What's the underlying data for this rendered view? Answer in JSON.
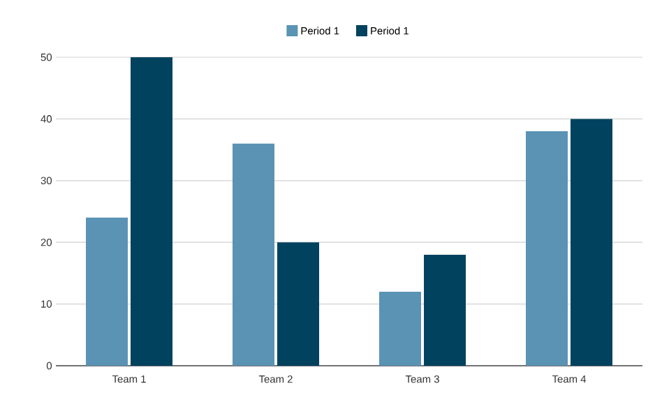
{
  "chart_data": {
    "type": "bar",
    "categories": [
      "Team 1",
      "Team 2",
      "Team 3",
      "Team 4"
    ],
    "series": [
      {
        "name": "Period 1",
        "color": "#5a93b4",
        "values": [
          24,
          36,
          12,
          38
        ]
      },
      {
        "name": "Period 1",
        "color": "#01425f",
        "values": [
          50,
          20,
          18,
          40
        ]
      }
    ],
    "ylim": [
      0,
      50
    ],
    "yticks": [
      0,
      10,
      20,
      30,
      40,
      50
    ],
    "grid": "y",
    "legend": "top"
  }
}
